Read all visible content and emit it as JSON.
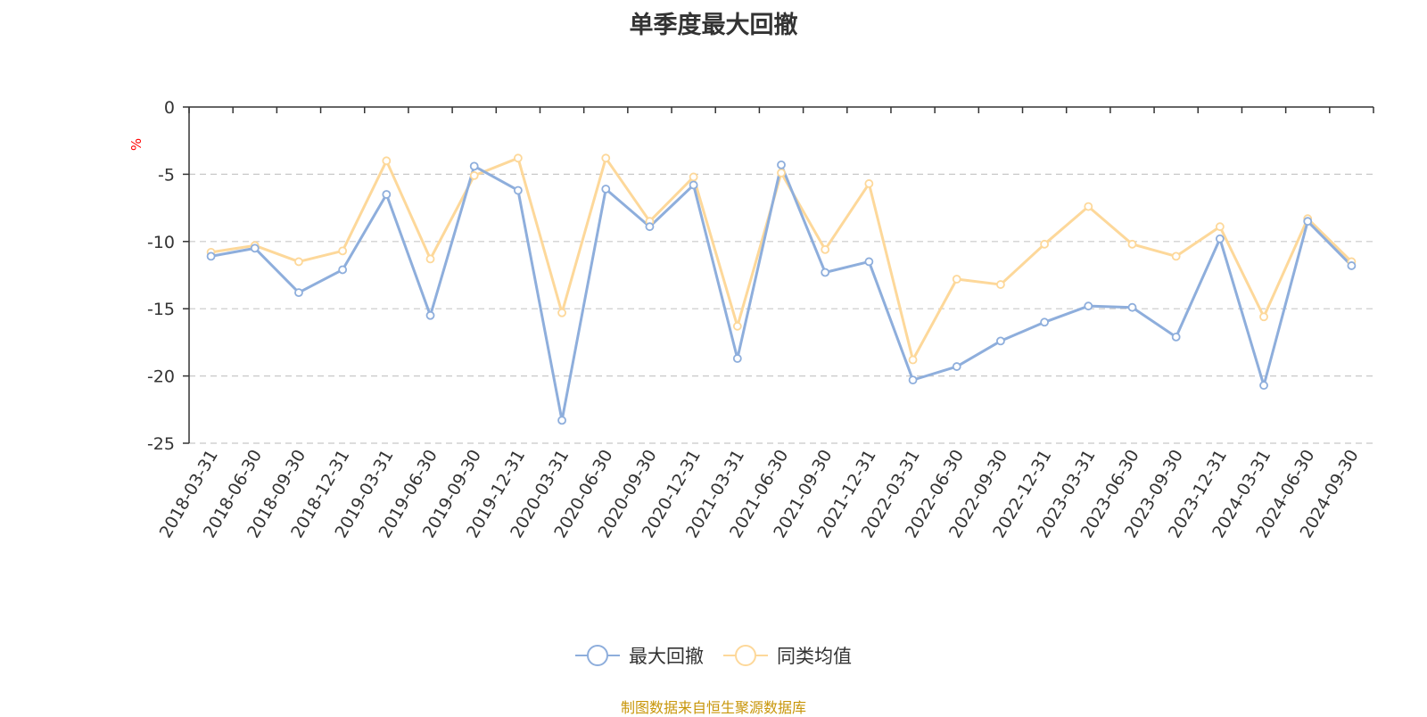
{
  "title": "单季度最大回撤",
  "source": "制图数据来自恒生聚源数据库",
  "colors": {
    "series1": "#8eaedc",
    "series2": "#fdd89a",
    "grid": "#c8c8c8",
    "axis": "#333333",
    "ylabel": "#ff0000",
    "source": "#c8960a"
  },
  "legend": [
    {
      "label": "最大回撤",
      "color": "#8eaedc"
    },
    {
      "label": "同类均值",
      "color": "#fdd89a"
    }
  ],
  "chart_data": {
    "type": "line",
    "title": "单季度最大回撤",
    "ylabel": "%",
    "xlabel": "",
    "ylim": [
      -25,
      0
    ],
    "yticks": [
      0,
      -5,
      -10,
      -15,
      -20,
      -25
    ],
    "grid": true,
    "legend_position": "bottom",
    "categories": [
      "2018-03-31",
      "2018-06-30",
      "2018-09-30",
      "2018-12-31",
      "2019-03-31",
      "2019-06-30",
      "2019-09-30",
      "2019-12-31",
      "2020-03-31",
      "2020-06-30",
      "2020-09-30",
      "2020-12-31",
      "2021-03-31",
      "2021-06-30",
      "2021-09-30",
      "2021-12-31",
      "2022-03-31",
      "2022-06-30",
      "2022-09-30",
      "2022-12-31",
      "2023-03-31",
      "2023-06-30",
      "2023-09-30",
      "2023-12-31",
      "2024-03-31",
      "2024-06-30",
      "2024-09-30"
    ],
    "series": [
      {
        "name": "最大回撤",
        "values": [
          -11.1,
          -10.5,
          -13.8,
          -12.1,
          -6.5,
          -15.5,
          -4.4,
          -6.2,
          -23.3,
          -6.1,
          -8.9,
          -5.8,
          -18.7,
          -4.3,
          -12.3,
          -11.5,
          -20.3,
          -19.3,
          -17.4,
          -16.0,
          -14.8,
          -14.9,
          -17.1,
          -9.8,
          -20.7,
          -8.5,
          -11.8
        ]
      },
      {
        "name": "同类均值",
        "values": [
          -10.8,
          -10.3,
          -11.5,
          -10.7,
          -4.0,
          -11.3,
          -5.1,
          -3.8,
          -15.3,
          -3.8,
          -8.5,
          -5.2,
          -16.3,
          -4.9,
          -10.6,
          -5.7,
          -18.8,
          -12.8,
          -13.2,
          -10.2,
          -7.4,
          -10.2,
          -11.1,
          -8.9,
          -15.6,
          -8.3,
          -11.5
        ]
      }
    ]
  }
}
